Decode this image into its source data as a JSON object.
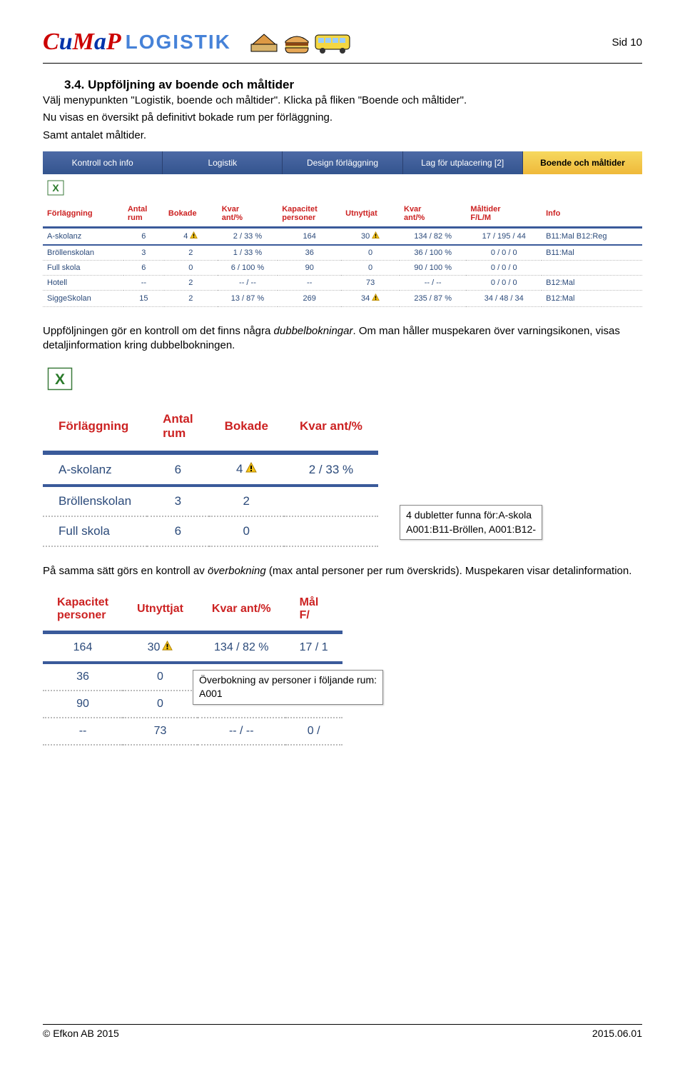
{
  "page_label": "Sid 10",
  "logo": {
    "text": "CuMaP",
    "logistik": "LOGISTIK"
  },
  "section": {
    "heading": "3.4. Uppföljning av boende och måltider",
    "p1": "Välj menypunkten \"Logistik, boende och måltider\". Klicka på fliken \"Boende och måltider\".",
    "p2": "Nu visas en översikt på definitivt bokade rum per förläggning.",
    "p3": "Samt antalet måltider."
  },
  "tabs": [
    "Kontroll och info",
    "Logistik",
    "Design förläggning",
    "Lag för utplacering [2]",
    "Boende och måltider"
  ],
  "active_tab": 4,
  "table1": {
    "headers": [
      "Förläggning",
      "Antal rum",
      "Bokade",
      "Kvar ant/%",
      "Kapacitet personer",
      "Utnyttjat",
      "Kvar ant/%",
      "Måltider F/L/M",
      "Info"
    ],
    "rows": [
      {
        "name": "A-skolanz",
        "antal": "6",
        "bokade": "4",
        "bokade_warn": true,
        "kvar": "2 / 33 %",
        "kap": "164",
        "utn": "30",
        "utn_warn": true,
        "kvar2": "134 / 82 %",
        "malt": "17 / 195 / 44",
        "info": "B11:Mal B12:Reg",
        "first": true
      },
      {
        "name": "Bröllenskolan",
        "antal": "3",
        "bokade": "2",
        "kvar": "1 / 33 %",
        "kap": "36",
        "utn": "0",
        "kvar2": "36 / 100 %",
        "malt": "0 / 0 / 0",
        "info": "B11:Mal"
      },
      {
        "name": "Full skola",
        "antal": "6",
        "bokade": "0",
        "kvar": "6 / 100 %",
        "kap": "90",
        "utn": "0",
        "kvar2": "90 / 100 %",
        "malt": "0 / 0 / 0",
        "info": ""
      },
      {
        "name": "Hotell",
        "antal": "--",
        "bokade": "2",
        "kvar": "-- / --",
        "kap": "--",
        "utn": "73",
        "kvar2": "-- / --",
        "malt": "0 / 0 / 0",
        "info": "B12:Mal"
      },
      {
        "name": "SiggeSkolan",
        "antal": "15",
        "bokade": "2",
        "kvar": "13 / 87 %",
        "kap": "269",
        "utn": "34",
        "utn_warn": true,
        "kvar2": "235 / 87 %",
        "malt": "34 / 48 / 34",
        "info": "B12:Mal"
      }
    ]
  },
  "para_dubbel_a": "Uppföljningen gör en kontroll om det finns några ",
  "para_dubbel_em": "dubbelbokningar",
  "para_dubbel_b": ". Om man håller muspekaren över varningsikonen, visas detaljinformation kring dubbelbokningen.",
  "table2": {
    "headers": [
      "Förläggning",
      "Antal rum",
      "Bokade",
      "Kvar ant/%"
    ],
    "rows": [
      {
        "name": "A-skolanz",
        "antal": "6",
        "bokade": "4",
        "warn": true,
        "kvar": "2 / 33 %"
      },
      {
        "name": "Bröllenskolan",
        "antal": "3",
        "bokade": "2",
        "kvar": ""
      },
      {
        "name": "Full skola",
        "antal": "6",
        "bokade": "0",
        "kvar": ""
      }
    ]
  },
  "tooltip2": {
    "line1": "4 dubletter funna för:A-skola",
    "line2": "A001:B11-Bröllen, A001:B12-"
  },
  "para_over_a": "På samma sätt görs en kontroll av ",
  "para_over_em": "överbokning",
  "para_over_b": " (max antal personer per rum överskrids). Muspekaren visar detalinformation.",
  "table3": {
    "headers": [
      "Kapacitet personer",
      "Utnyttjat",
      "Kvar ant/%",
      "Mål F/"
    ],
    "rows": [
      {
        "kap": "164",
        "utn": "30",
        "warn": true,
        "kvar": "134 / 82 %",
        "malt": "17 / 1"
      },
      {
        "kap": "36",
        "utn": "0",
        "kvar": "",
        "malt": ""
      },
      {
        "kap": "90",
        "utn": "0",
        "kvar": "",
        "malt": ""
      },
      {
        "kap": "--",
        "utn": "73",
        "kvar": "-- / --",
        "malt": "0 /"
      }
    ]
  },
  "tooltip3": {
    "line1": "Överbokning av personer i följande rum:",
    "line2": "A001"
  },
  "footer": {
    "left": "© Efkon AB 2015",
    "right": "2015.06.01"
  }
}
